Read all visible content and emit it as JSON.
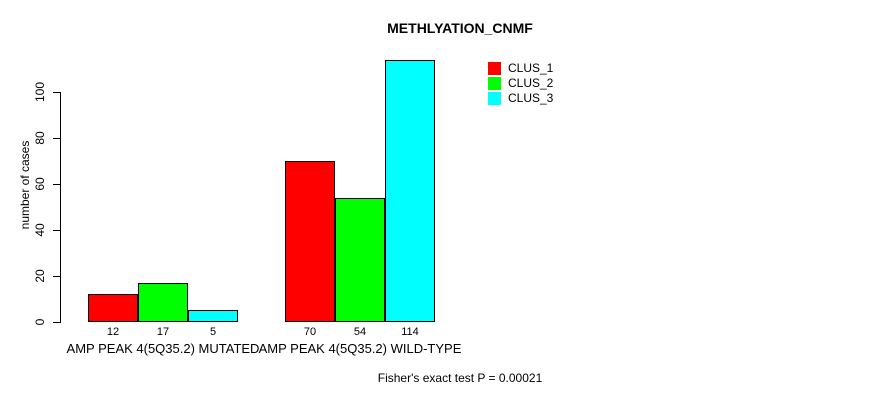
{
  "chart_data": {
    "type": "bar",
    "title": "METHLYATION_CNMF",
    "ylabel": "number of cases",
    "xlabel": "",
    "categories": [
      "AMP PEAK 4(5Q35.2) MUTATED",
      "AMP PEAK 4(5Q35.2) WILD-TYPE"
    ],
    "series": [
      {
        "name": "CLUS_1",
        "color": "#FF0000",
        "values": [
          12,
          70
        ]
      },
      {
        "name": "CLUS_2",
        "color": "#00FF00",
        "values": [
          17,
          54
        ]
      },
      {
        "name": "CLUS_3",
        "color": "#00FFFF",
        "values": [
          5,
          114
        ]
      }
    ],
    "yticks": [
      0,
      20,
      40,
      60,
      80,
      100
    ],
    "ylim": [
      0,
      115
    ],
    "grid": false,
    "legend_position": "top-right",
    "annotation": "Fisher's exact test P = 0.00021"
  }
}
